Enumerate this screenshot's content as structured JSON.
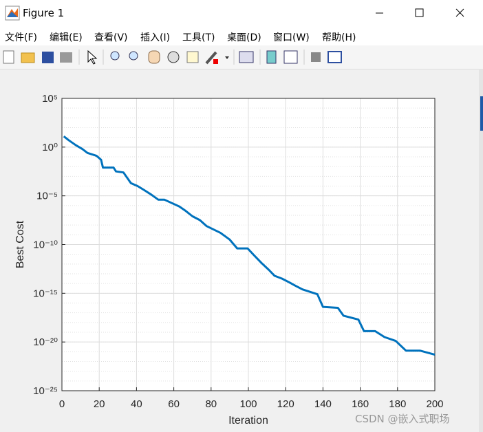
{
  "window": {
    "title": "Figure 1",
    "menu": [
      "文件(F)",
      "编辑(E)",
      "查看(V)",
      "插入(I)",
      "工具(T)",
      "桌面(D)",
      "窗口(W)",
      "帮助(H)"
    ],
    "watermark": "CSDN @嵌入式职场"
  },
  "chart_data": {
    "type": "line",
    "xlabel": "Iteration",
    "ylabel": "Best Cost",
    "x": [
      1,
      3.7,
      7.4,
      11,
      13.7,
      18.5,
      21,
      22,
      27.7,
      29,
      33,
      37,
      40.6,
      44,
      48,
      51.7,
      55,
      63,
      66,
      70,
      74,
      77.5,
      85,
      90,
      94,
      99.6,
      103,
      107,
      111,
      114,
      118,
      122,
      125,
      129,
      137,
      140,
      148,
      151,
      159,
      162,
      168,
      173,
      179,
      184.5,
      192,
      200
    ],
    "values": [
      12.6,
      5.0,
      1.6,
      0.63,
      0.25,
      0.13,
      0.05,
      0.0079,
      0.0079,
      0.0032,
      0.0025,
      0.0002,
      0.0001,
      4e-05,
      1.3e-05,
      4e-06,
      4e-06,
      8e-07,
      3.2e-07,
      8e-08,
      3.2e-08,
      8e-09,
      1.6e-09,
      3.2e-10,
      4e-11,
      4e-11,
      8e-12,
      1.3e-12,
      2.5e-13,
      6.3e-14,
      3.2e-14,
      1.3e-14,
      6.3e-15,
      2.5e-15,
      8e-16,
      4e-17,
      3.2e-17,
      5e-18,
      2e-18,
      1.3e-19,
      1.3e-19,
      3.2e-20,
      1.3e-20,
      1.3e-21,
      1.3e-21,
      5e-22
    ],
    "color": "#0072bd",
    "xlim": [
      0,
      200
    ],
    "xticks": [
      0,
      20,
      40,
      60,
      80,
      100,
      120,
      140,
      160,
      180,
      200
    ],
    "yscale": "log",
    "ylim": [
      1e-25,
      100000
    ],
    "yticks": [
      {
        "value": 1e-25,
        "label": "10⁻²⁵"
      },
      {
        "value": 1e-20,
        "label": "10⁻²⁰"
      },
      {
        "value": 1e-15,
        "label": "10⁻¹⁵"
      },
      {
        "value": 1e-10,
        "label": "10⁻¹⁰"
      },
      {
        "value": 1e-05,
        "label": "10⁻⁵"
      },
      {
        "value": 1,
        "label": "10⁰"
      },
      {
        "value": 100000,
        "label": "10⁵"
      }
    ],
    "grid": true,
    "minor_grid": true
  }
}
